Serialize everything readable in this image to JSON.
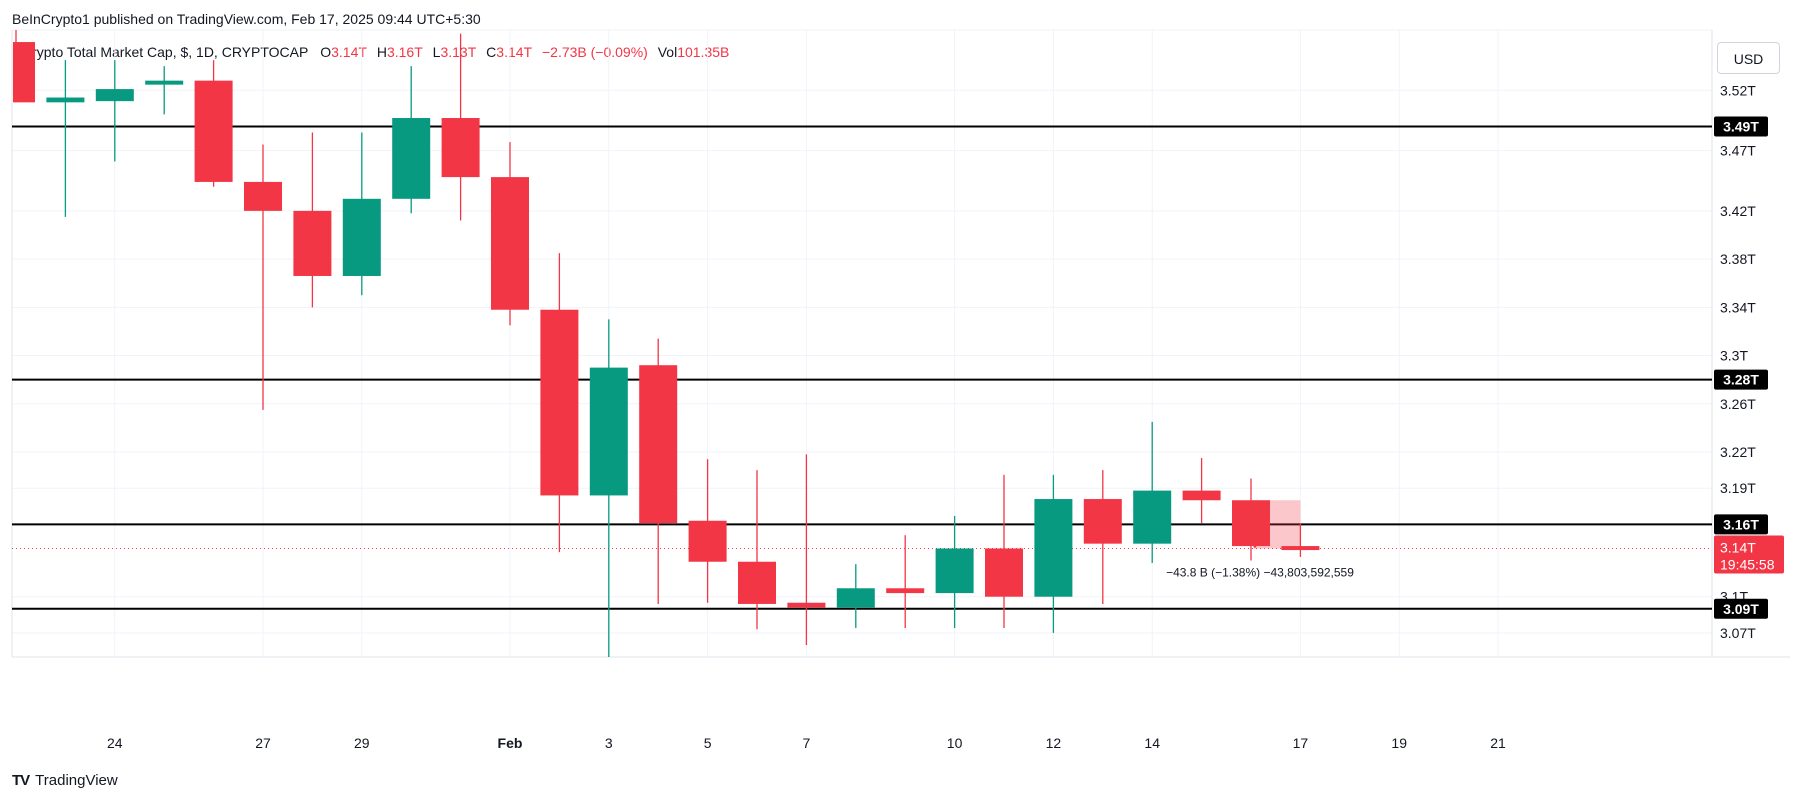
{
  "header": {
    "published_by": "BeInCrypto1 published on TradingView.com, Feb 17, 2025 09:44 UTC+5:30"
  },
  "legend": {
    "title": "Crypto Total Market Cap, $, 1D, CRYPTOCAP",
    "o_label": "O",
    "o_value": "3.14T",
    "h_label": "H",
    "h_value": "3.16T",
    "l_label": "L",
    "l_value": "3.13T",
    "c_label": "C",
    "c_value": "3.14T",
    "change": "−2.73B (−0.09%)",
    "vol_label": "Vol",
    "vol_value": "101.35B"
  },
  "currency_button": "USD",
  "brand": {
    "name": "TradingView",
    "mark": "TV"
  },
  "colors": {
    "up": "#089981",
    "down": "#f23645",
    "level": "#000000",
    "grid": "#f0f3fa"
  },
  "chart_data": {
    "type": "candlestick",
    "title": "Crypto Total Market Cap, $, 1D, CRYPTOCAP",
    "x_ticks": [
      "24",
      "27",
      "29",
      "Feb",
      "3",
      "5",
      "7",
      "10",
      "12",
      "14",
      "17",
      "19",
      "21"
    ],
    "y_ticks": [
      "3.52T",
      "3.47T",
      "3.42T",
      "3.38T",
      "3.34T",
      "3.3T",
      "3.26T",
      "3.22T",
      "3.19T",
      "3.1T",
      "3.07T"
    ],
    "ylim": [
      3.05,
      3.57
    ],
    "price_levels": [
      "3.49T",
      "3.28T",
      "3.16T",
      "3.09T"
    ],
    "current_price": "3.14T",
    "countdown": "19:45:58",
    "measure_label": "−43.8 B (−1.38%) −43,803,592,559",
    "candles": [
      {
        "date": "Jan 22",
        "open": 3.56,
        "high": 3.57,
        "low": 3.51,
        "close": 3.51
      },
      {
        "date": "Jan 23",
        "open": 3.51,
        "high": 3.545,
        "low": 3.415,
        "close": 3.514
      },
      {
        "date": "Jan 24",
        "open": 3.511,
        "high": 3.545,
        "low": 3.461,
        "close": 3.521
      },
      {
        "date": "Jan 25",
        "open": 3.525,
        "high": 3.54,
        "low": 3.5,
        "close": 3.528
      },
      {
        "date": "Jan 26",
        "open": 3.528,
        "high": 3.545,
        "low": 3.44,
        "close": 3.444
      },
      {
        "date": "Jan 27",
        "open": 3.444,
        "high": 3.475,
        "low": 3.255,
        "close": 3.42
      },
      {
        "date": "Jan 28",
        "open": 3.42,
        "high": 3.485,
        "low": 3.34,
        "close": 3.366
      },
      {
        "date": "Jan 29",
        "open": 3.366,
        "high": 3.485,
        "low": 3.35,
        "close": 3.43
      },
      {
        "date": "Jan 30",
        "open": 3.43,
        "high": 3.54,
        "low": 3.418,
        "close": 3.497
      },
      {
        "date": "Jan 31",
        "open": 3.497,
        "high": 3.567,
        "low": 3.412,
        "close": 3.448
      },
      {
        "date": "Feb 1",
        "open": 3.448,
        "high": 3.477,
        "low": 3.325,
        "close": 3.338
      },
      {
        "date": "Feb 2",
        "open": 3.338,
        "high": 3.385,
        "low": 3.137,
        "close": 3.184
      },
      {
        "date": "Feb 3",
        "open": 3.184,
        "high": 3.33,
        "low": 3.05,
        "close": 3.29
      },
      {
        "date": "Feb 4",
        "open": 3.292,
        "high": 3.314,
        "low": 3.094,
        "close": 3.161
      },
      {
        "date": "Feb 5",
        "open": 3.163,
        "high": 3.214,
        "low": 3.095,
        "close": 3.129
      },
      {
        "date": "Feb 6",
        "open": 3.129,
        "high": 3.205,
        "low": 3.073,
        "close": 3.094
      },
      {
        "date": "Feb 7",
        "open": 3.095,
        "high": 3.218,
        "low": 3.06,
        "close": 3.091
      },
      {
        "date": "Feb 8",
        "open": 3.091,
        "high": 3.127,
        "low": 3.074,
        "close": 3.107
      },
      {
        "date": "Feb 9",
        "open": 3.107,
        "high": 3.151,
        "low": 3.074,
        "close": 3.103
      },
      {
        "date": "Feb 10",
        "open": 3.103,
        "high": 3.167,
        "low": 3.074,
        "close": 3.14
      },
      {
        "date": "Feb 11",
        "open": 3.14,
        "high": 3.201,
        "low": 3.074,
        "close": 3.1
      },
      {
        "date": "Feb 12",
        "open": 3.1,
        "high": 3.201,
        "low": 3.07,
        "close": 3.181
      },
      {
        "date": "Feb 13",
        "open": 3.181,
        "high": 3.205,
        "low": 3.094,
        "close": 3.144
      },
      {
        "date": "Feb 14",
        "open": 3.144,
        "high": 3.245,
        "low": 3.128,
        "close": 3.188
      },
      {
        "date": "Feb 15",
        "open": 3.188,
        "high": 3.215,
        "low": 3.161,
        "close": 3.18
      },
      {
        "date": "Feb 16",
        "open": 3.18,
        "high": 3.198,
        "low": 3.13,
        "close": 3.142
      },
      {
        "date": "Feb 17",
        "open": 3.142,
        "high": 3.161,
        "low": 3.133,
        "close": 3.14
      }
    ]
  }
}
